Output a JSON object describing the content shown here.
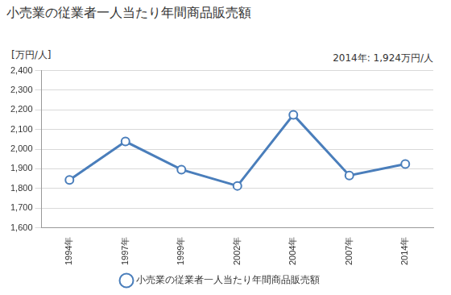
{
  "chart_data": {
    "type": "line",
    "title": "小売業の従業者一人当たり年間商品販売額",
    "y_label": "[万円/人]",
    "annotation": "2014年: 1,924万円/人",
    "categories": [
      "1994年",
      "1997年",
      "1999年",
      "2002年",
      "2004年",
      "2007年",
      "2014年"
    ],
    "series": [
      {
        "name": "小売業の従業者一人当たり年間商品販売額",
        "color": "#4a7ebb",
        "values": [
          1843,
          2039,
          1896,
          1813,
          2175,
          1866,
          1924
        ],
        "marker": "circle"
      }
    ],
    "ylim": [
      1600,
      2400
    ],
    "yticks": [
      {
        "value": 1600,
        "label": "1,600"
      },
      {
        "value": 1700,
        "label": "1,700"
      },
      {
        "value": 1800,
        "label": "1,800"
      },
      {
        "value": 1900,
        "label": "1,900"
      },
      {
        "value": 2000,
        "label": "2,000"
      },
      {
        "value": 2100,
        "label": "2,100"
      },
      {
        "value": 2200,
        "label": "2,200"
      },
      {
        "value": 2300,
        "label": "2,300"
      },
      {
        "value": 2400,
        "label": "2,400"
      }
    ],
    "grid": true,
    "legend": "bottom"
  }
}
